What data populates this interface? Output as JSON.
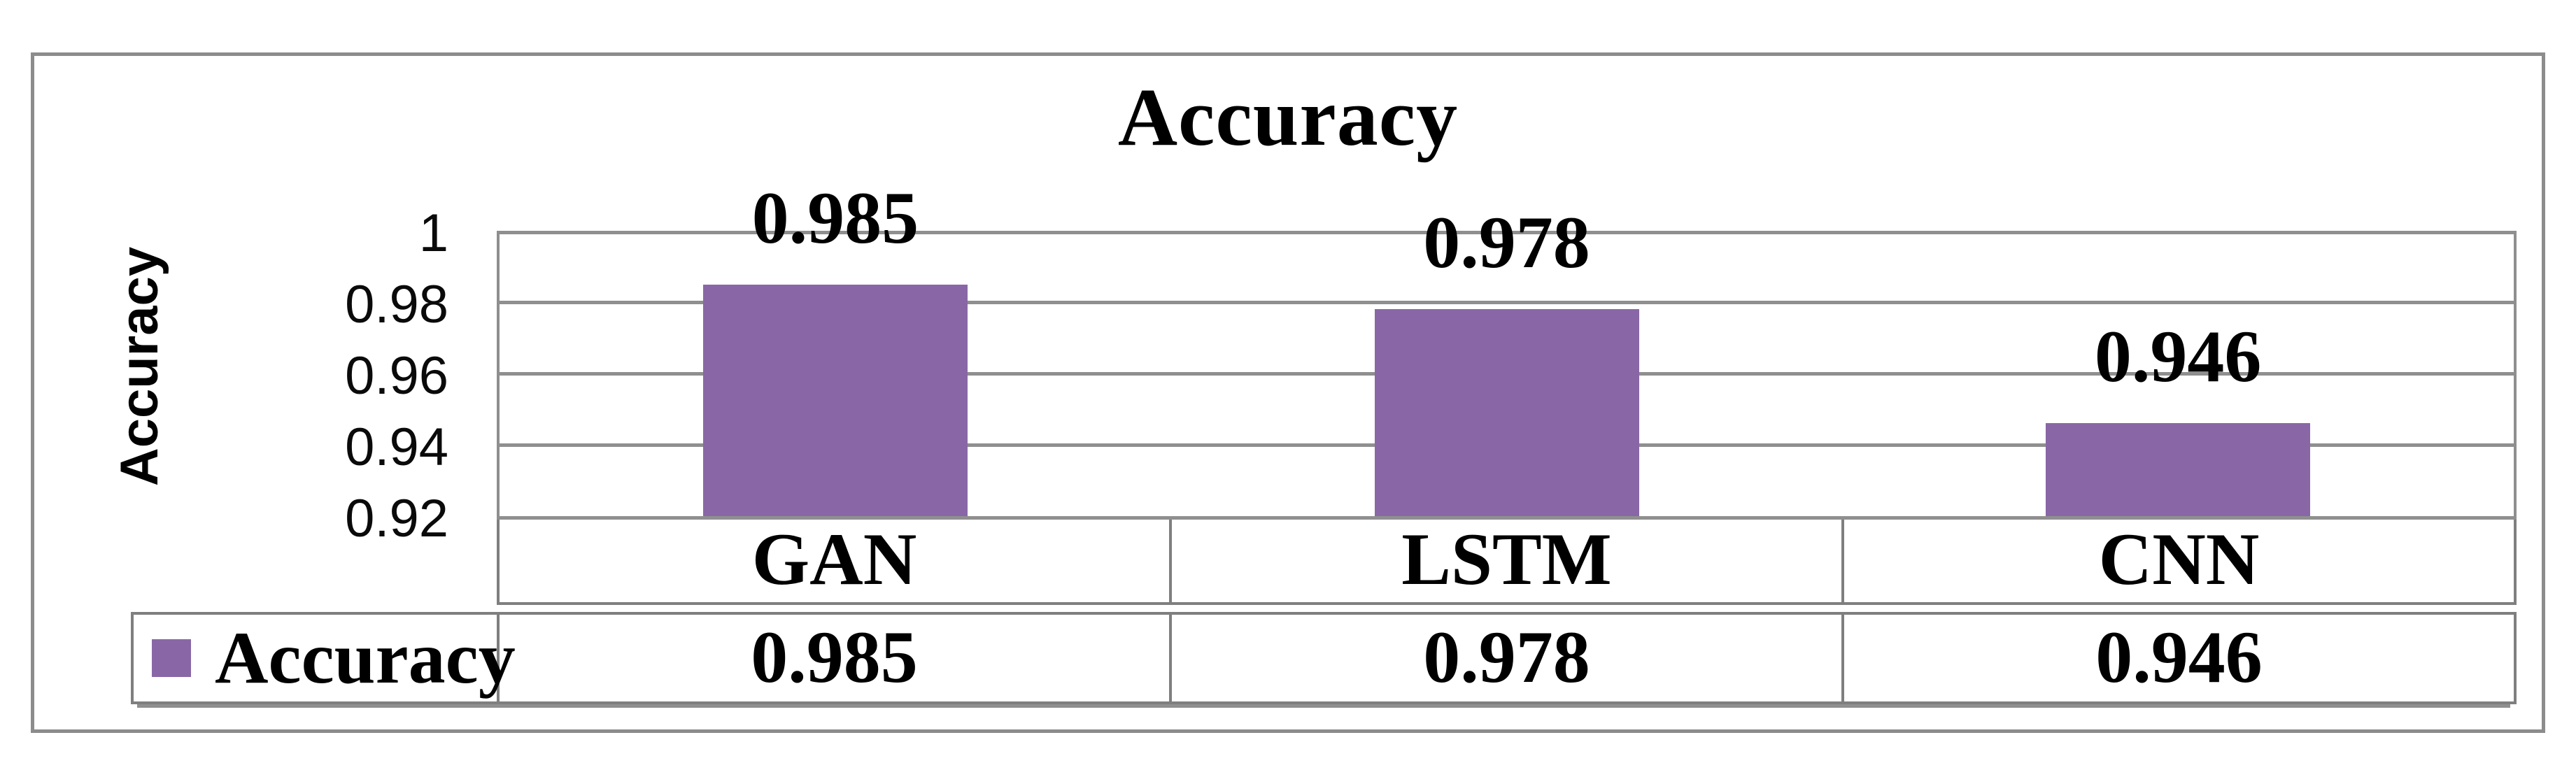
{
  "figure": {
    "background": "#ffffff"
  },
  "chart": {
    "title": "Accuracy",
    "y_axis": {
      "title": "Accuracy",
      "tick_labels": [
        "1",
        "0.98",
        "0.96",
        "0.94",
        "0.92"
      ]
    },
    "legend": {
      "label": "Accuracy",
      "swatch_color": "#8967A6"
    },
    "table": {
      "categories": [
        "GAN",
        "LSTM",
        "CNN"
      ],
      "values": [
        "0.985",
        "0.978",
        "0.946"
      ]
    }
  },
  "chart_data": {
    "type": "bar",
    "title": "Accuracy",
    "categories": [
      "GAN",
      "LSTM",
      "CNN"
    ],
    "series": [
      {
        "name": "Accuracy",
        "values": [
          0.985,
          0.978,
          0.946
        ]
      }
    ],
    "values": [
      0.985,
      0.978,
      0.946
    ],
    "data_labels": [
      "0.985",
      "0.978",
      "0.946"
    ],
    "xlabel": "",
    "ylabel": "Accuracy",
    "ylim": [
      0.92,
      1.0
    ],
    "yticks": [
      1,
      0.98,
      0.96,
      0.94,
      0.92
    ],
    "ytick_labels": [
      "1",
      "0.98",
      "0.96",
      "0.94",
      "0.92"
    ],
    "grid": true,
    "legend_entries": [
      "Accuracy"
    ],
    "legend_position": "bottom-left",
    "bar_color": "#8967A6",
    "gridline_color": "#8f8f8f",
    "axis_table_below": true
  }
}
